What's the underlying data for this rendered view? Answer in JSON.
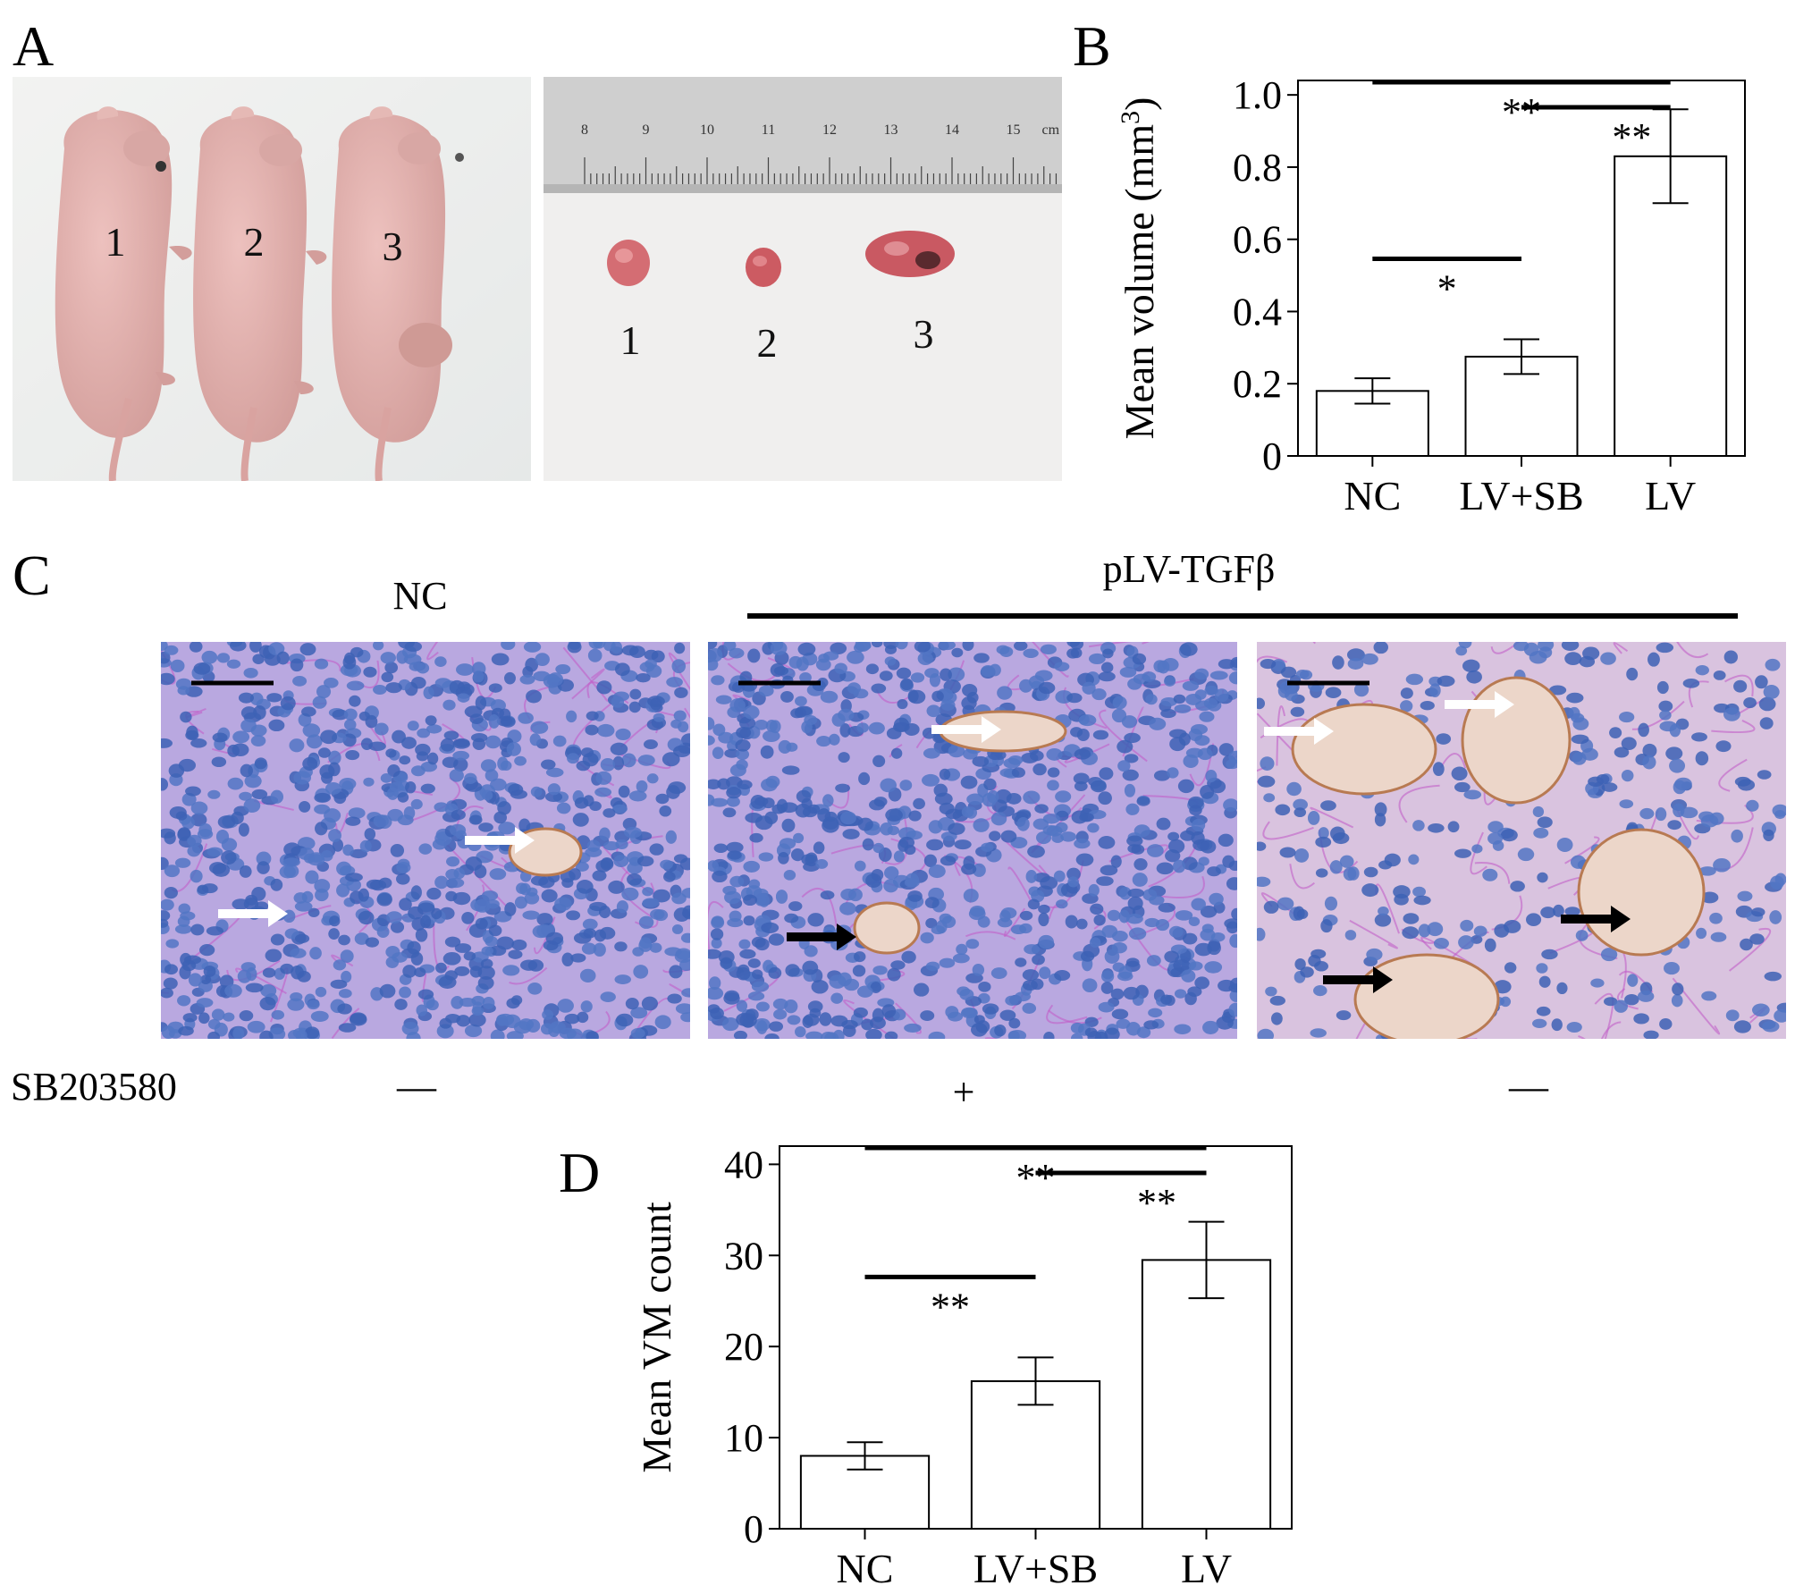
{
  "panels": {
    "a": "A",
    "b": "B",
    "c": "C",
    "d": "D"
  },
  "panel_a": {
    "mouse_labels": [
      "1",
      "2",
      "3"
    ],
    "tumor_labels": [
      "1",
      "2",
      "3"
    ],
    "ruler_ticks": [
      "8",
      "9",
      "10",
      "11",
      "12",
      "13",
      "14",
      "15"
    ],
    "ruler_unit": "cm"
  },
  "panel_c": {
    "group_nc": "NC",
    "group_tgf": "pLV-TGFβ",
    "treatment_label": "SB203580",
    "treatment_marks": [
      "—",
      "+",
      "—"
    ]
  },
  "chart_data": [
    {
      "id": "B",
      "type": "bar",
      "categories": [
        "NC",
        "LV+SB",
        "LV"
      ],
      "values": [
        0.18,
        0.275,
        0.83
      ],
      "errors": [
        0.035,
        0.048,
        0.13
      ],
      "ylabel": "Mean volume (mm",
      "ylabel_sup": "3",
      "ylabel_close": ")",
      "ylim": [
        0,
        1.04
      ],
      "yticks": [
        "0",
        "0.2",
        "0.4",
        "0.6",
        "0.8",
        "1.0"
      ],
      "ytick_values": [
        0,
        0.2,
        0.4,
        0.6,
        0.8,
        1.0
      ],
      "significance": [
        {
          "from": 0,
          "to": 1,
          "label": "*"
        },
        {
          "from": 1,
          "to": 2,
          "label": "**"
        },
        {
          "from": 0,
          "to": 2,
          "label": "**"
        }
      ],
      "bar_color": "#ffffff"
    },
    {
      "id": "D",
      "type": "bar",
      "categories": [
        "NC",
        "LV+SB",
        "LV"
      ],
      "values": [
        8,
        16.2,
        29.5
      ],
      "errors": [
        1.5,
        2.6,
        4.2
      ],
      "ylabel": "Mean VM count",
      "ylim": [
        0,
        42
      ],
      "yticks": [
        "0",
        "10",
        "20",
        "30",
        "40"
      ],
      "ytick_values": [
        0,
        10,
        20,
        30,
        40
      ],
      "significance": [
        {
          "from": 0,
          "to": 1,
          "label": "**"
        },
        {
          "from": 1,
          "to": 2,
          "label": "**"
        },
        {
          "from": 0,
          "to": 2,
          "label": "**"
        }
      ],
      "bar_color": "#ffffff"
    }
  ]
}
